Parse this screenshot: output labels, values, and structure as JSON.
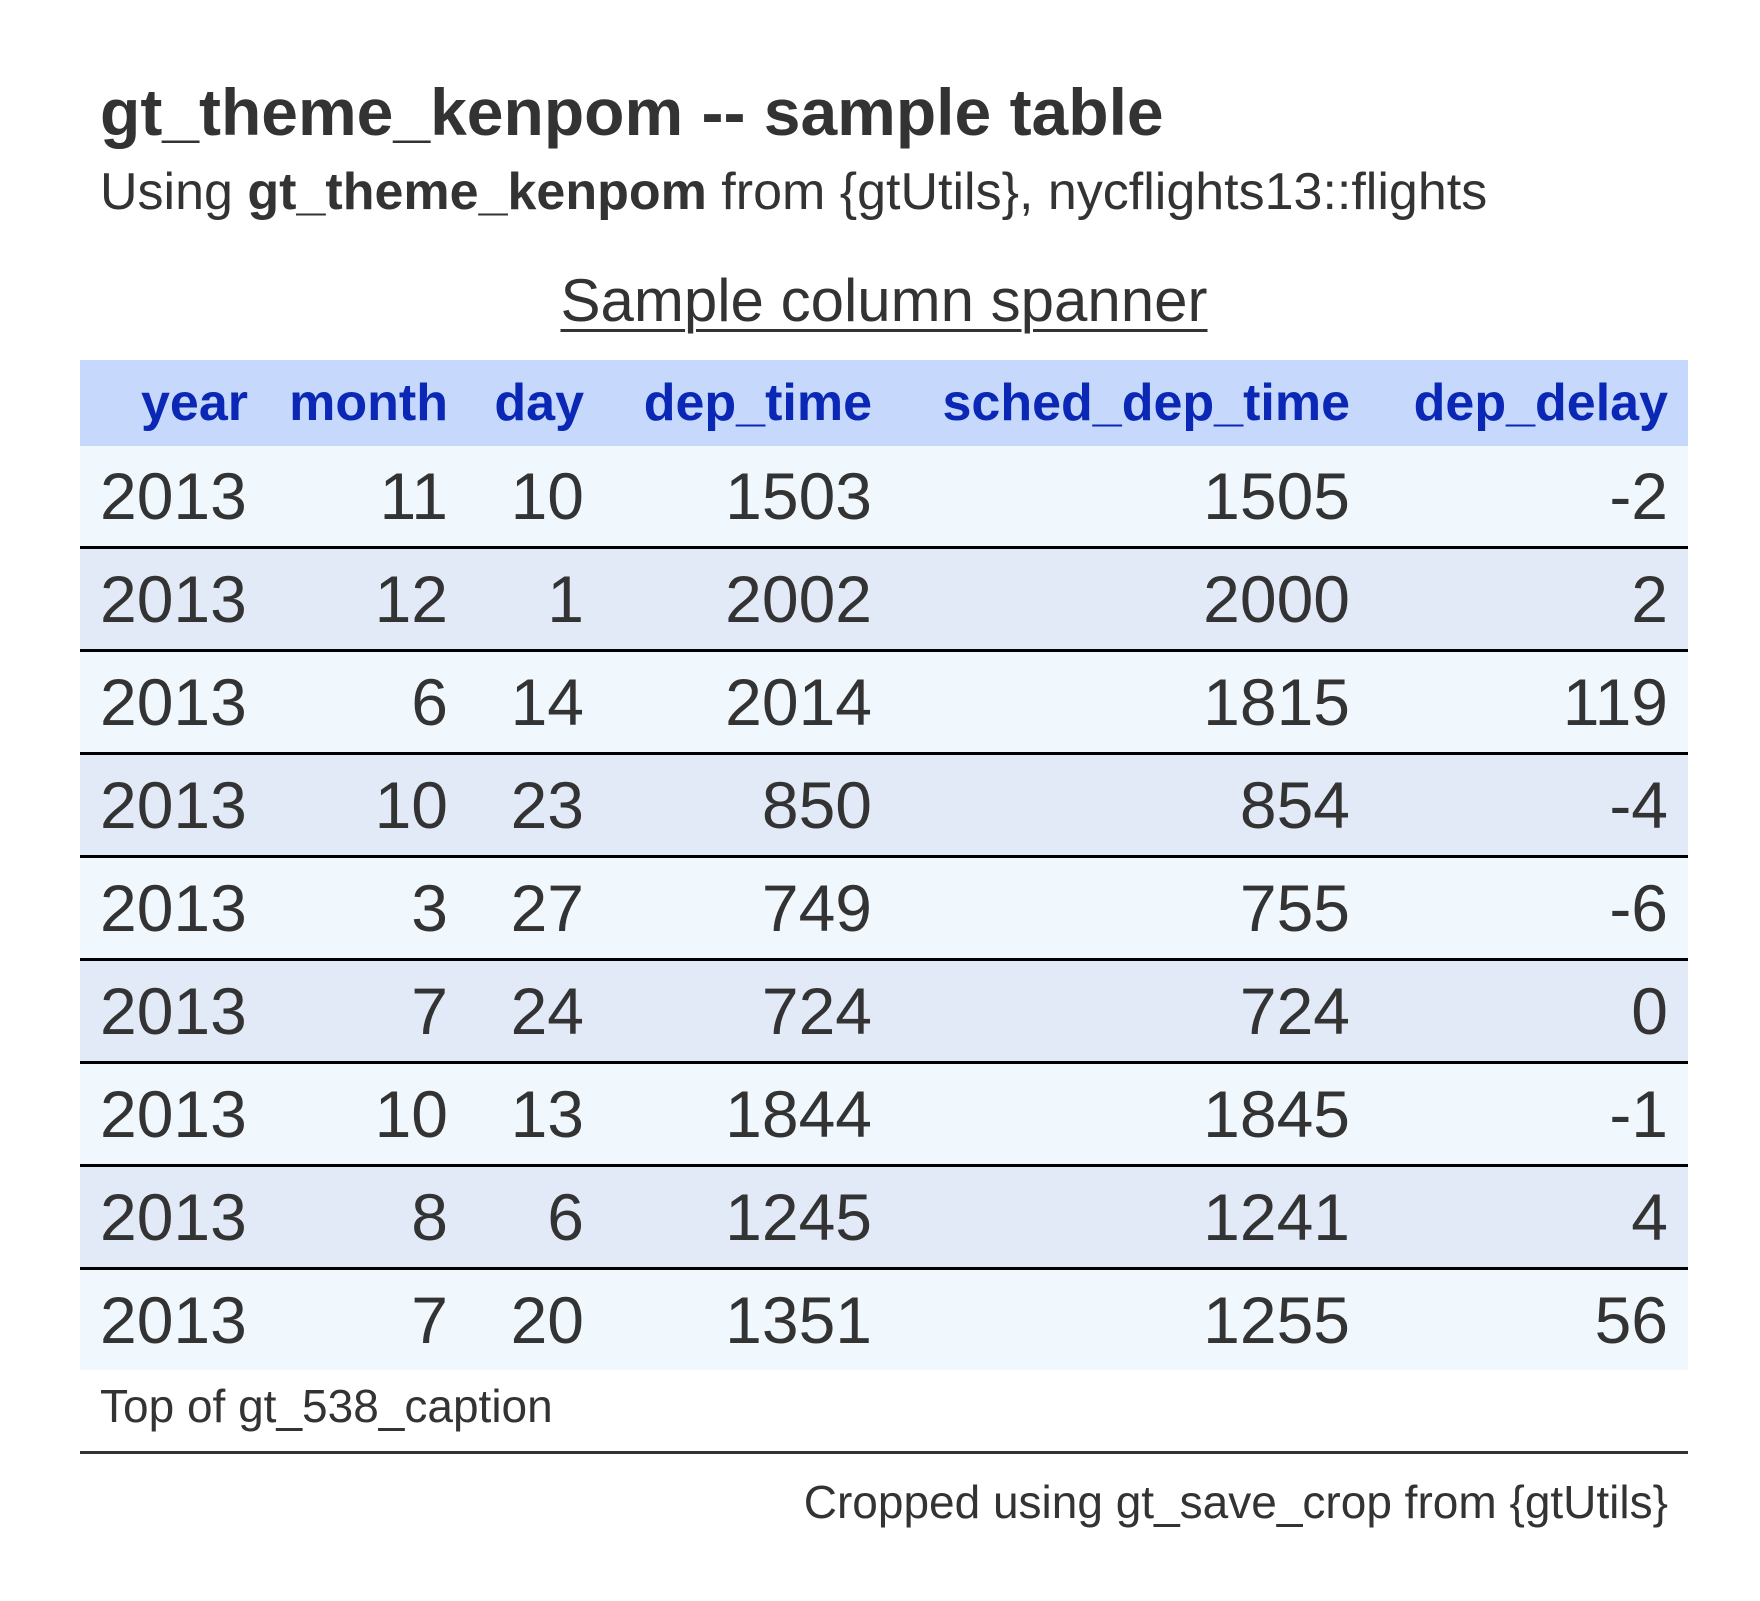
{
  "title": "gt_theme_kenpom -- sample table",
  "subtitle": {
    "prefix": "Using ",
    "bold": "gt_theme_kenpom",
    "suffix": " from {gtUtils}, nycflights13::flights"
  },
  "spanner": "Sample column spanner",
  "caption": "Top of gt_538_caption",
  "footnote": "Cropped using gt_save_crop from {gtUtils}",
  "colors": {
    "header_bg": "#c6d9fc",
    "header_text": "#0a27b5",
    "row_odd": "#f0f8fd",
    "row_even": "#e2eaf8",
    "text": "#333333"
  },
  "chart_data": {
    "type": "table",
    "columns": [
      "year",
      "month",
      "day",
      "dep_time",
      "sched_dep_time",
      "dep_delay"
    ],
    "rows": [
      [
        "2013",
        "11",
        "10",
        "1503",
        "1505",
        "-2"
      ],
      [
        "2013",
        "12",
        "1",
        "2002",
        "2000",
        "2"
      ],
      [
        "2013",
        "6",
        "14",
        "2014",
        "1815",
        "119"
      ],
      [
        "2013",
        "10",
        "23",
        "850",
        "854",
        "-4"
      ],
      [
        "2013",
        "3",
        "27",
        "749",
        "755",
        "-6"
      ],
      [
        "2013",
        "7",
        "24",
        "724",
        "724",
        "0"
      ],
      [
        "2013",
        "10",
        "13",
        "1844",
        "1845",
        "-1"
      ],
      [
        "2013",
        "8",
        "6",
        "1245",
        "1241",
        "4"
      ],
      [
        "2013",
        "7",
        "20",
        "1351",
        "1255",
        "56"
      ]
    ]
  }
}
